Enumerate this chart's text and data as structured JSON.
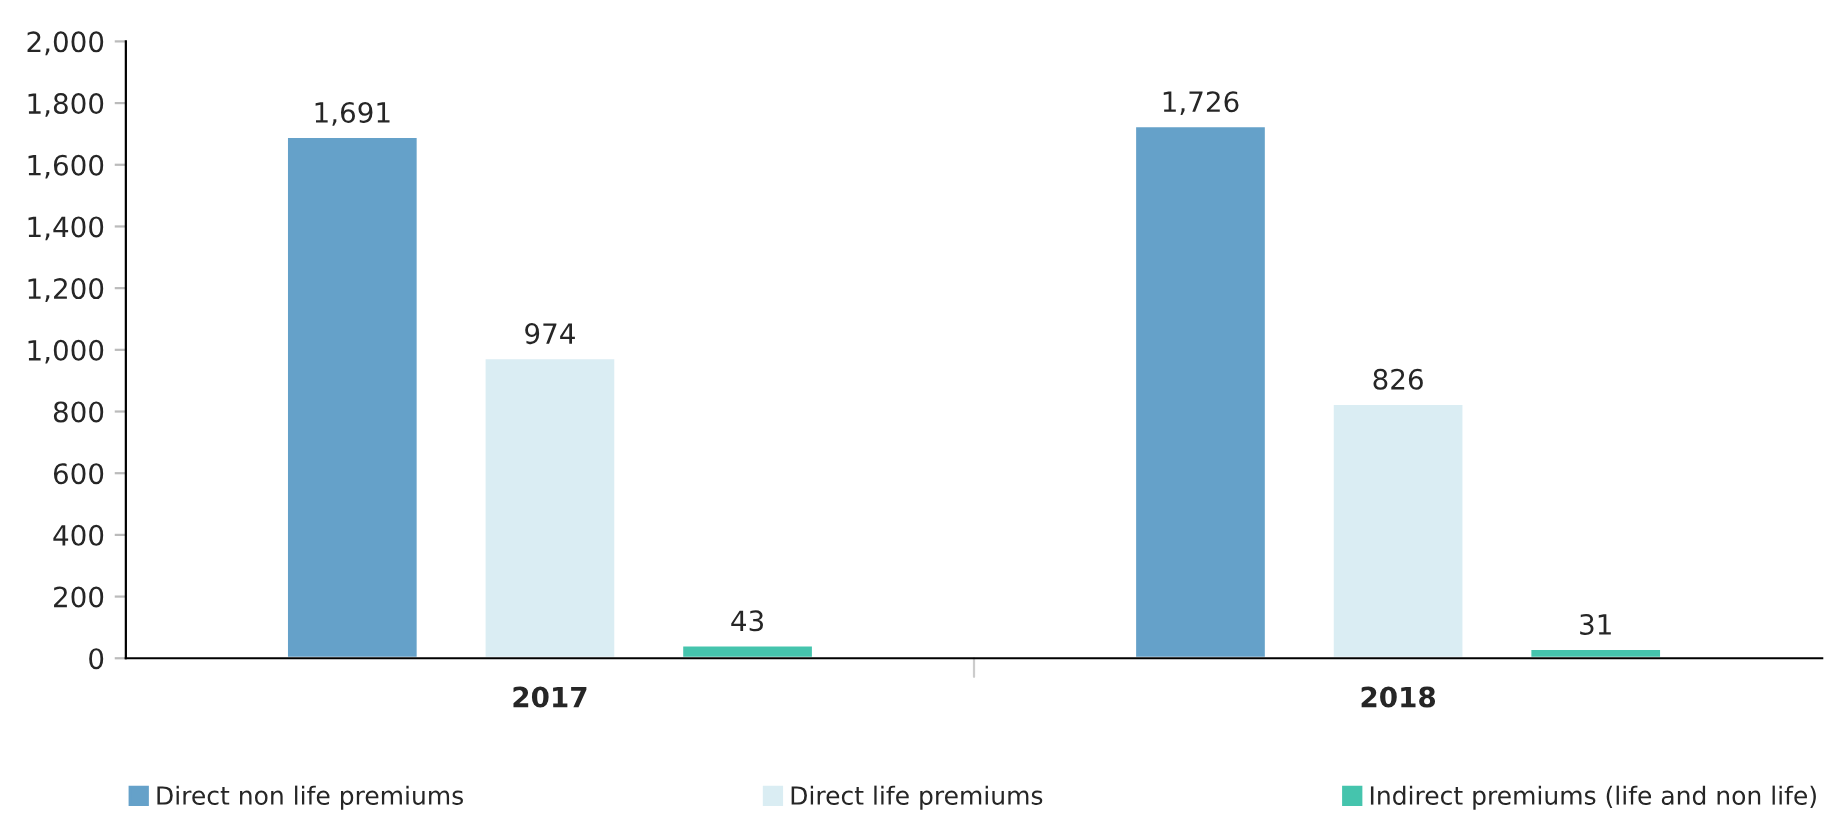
{
  "chart_data": {
    "type": "bar",
    "categories": [
      "2017",
      "2018"
    ],
    "series": [
      {
        "name": "Direct non life premiums",
        "color": "#65a1c9",
        "values": [
          1691,
          1726
        ],
        "value_labels": [
          "1,691",
          "1,726"
        ]
      },
      {
        "name": "Direct life premiums",
        "color": "#daedf3",
        "values": [
          974,
          826
        ],
        "value_labels": [
          "974",
          "826"
        ]
      },
      {
        "name": "Indirect premiums (life and non life)",
        "color": "#45c4ad",
        "values": [
          43,
          31
        ],
        "value_labels": [
          "43",
          "31"
        ]
      }
    ],
    "ylim": [
      0,
      2000
    ],
    "yticks": [
      0,
      {
        "value": 200,
        "label": "200"
      },
      {
        "value": 400,
        "label": "400"
      },
      {
        "value": 600,
        "label": "600"
      },
      {
        "value": 800,
        "label": "800"
      },
      {
        "value": 1000,
        "label": "1,000"
      },
      {
        "value": 1200,
        "label": "1,200"
      },
      {
        "value": 1400,
        "label": "1,400"
      },
      {
        "value": 1600,
        "label": "1,600"
      },
      {
        "value": 1800,
        "label": "1,800"
      },
      {
        "value": 2000,
        "label": "2,000"
      }
    ],
    "grid": false,
    "legend": "bottom"
  }
}
